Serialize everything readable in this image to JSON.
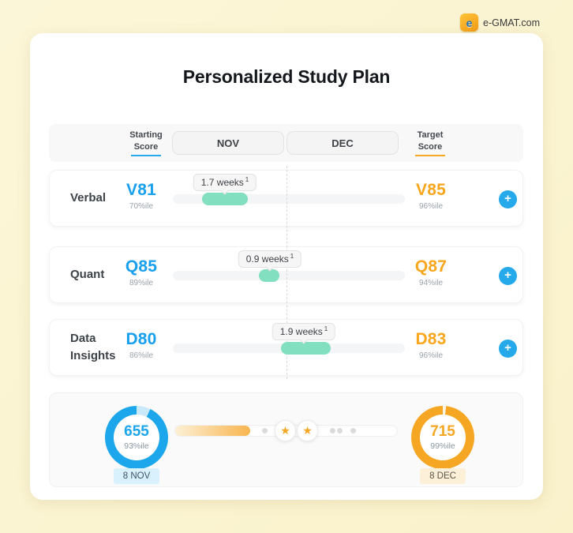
{
  "logo": {
    "label": "e-GMAT.com",
    "icon_letter": "e"
  },
  "title": "Personalized Study Plan",
  "header": {
    "starting_label_line1": "Starting",
    "starting_label_line2": "Score",
    "months": {
      "nov": "NOV",
      "dec": "DEC"
    },
    "target_label_line1": "Target",
    "target_label_line2": "Score"
  },
  "rows": [
    {
      "label": "Verbal",
      "start_score": "V81",
      "start_percentile": "70%ile",
      "target_score": "V85",
      "target_percentile": "96%ile",
      "duration": "1.7 weeks",
      "footnote": "1"
    },
    {
      "label": "Quant",
      "start_score": "Q85",
      "start_percentile": "89%ile",
      "target_score": "Q87",
      "target_percentile": "94%ile",
      "duration": "0.9 weeks",
      "footnote": "1"
    },
    {
      "label": "Data Insights",
      "start_score": "D80",
      "start_percentile": "86%ile",
      "target_score": "D83",
      "target_percentile": "96%ile",
      "duration": "1.9 weeks",
      "footnote": "1"
    }
  ],
  "summary": {
    "start": {
      "score": "655",
      "percentile": "93%ile",
      "date": "8 NOV"
    },
    "target": {
      "score": "715",
      "percentile": "99%ile",
      "date": "8 DEC"
    }
  },
  "icons": {
    "plus": "+",
    "star": "★"
  },
  "colors": {
    "background": "#FBF4D1",
    "accent_blue": "#18A0EE",
    "accent_orange": "#F9A61D",
    "mint": "#82DFC0",
    "ring_blue": "#1CA7EC",
    "ring_orange": "#F5A623"
  }
}
